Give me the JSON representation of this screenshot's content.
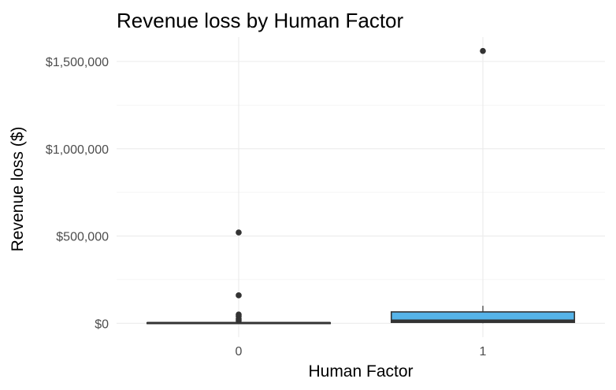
{
  "chart_data": {
    "type": "boxplot",
    "title": "Revenue loss by Human Factor",
    "xlabel": "Human Factor",
    "ylabel": "Revenue loss ($)",
    "categories": [
      "0",
      "1"
    ],
    "ylim": [
      -80000,
      1640000
    ],
    "yticks": [
      0,
      500000,
      1000000,
      1500000
    ],
    "ytick_labels": [
      "$0",
      "$500,000",
      "$1,000,000",
      "$1,500,000"
    ],
    "grid": true,
    "legend": "none",
    "boxes": [
      {
        "category": "0",
        "q1": 0,
        "median": 1000,
        "q3": 3000,
        "whisker_low": 0,
        "whisker_high": 7000,
        "fill": "#ffffff",
        "outliers": [
          520000,
          160000,
          50000,
          40000,
          25000,
          15000
        ]
      },
      {
        "category": "1",
        "q1": 5000,
        "median": 15000,
        "q3": 65000,
        "whisker_low": 0,
        "whisker_high": 100000,
        "fill": "#56b4e9",
        "outliers": [
          1560000
        ]
      }
    ]
  }
}
